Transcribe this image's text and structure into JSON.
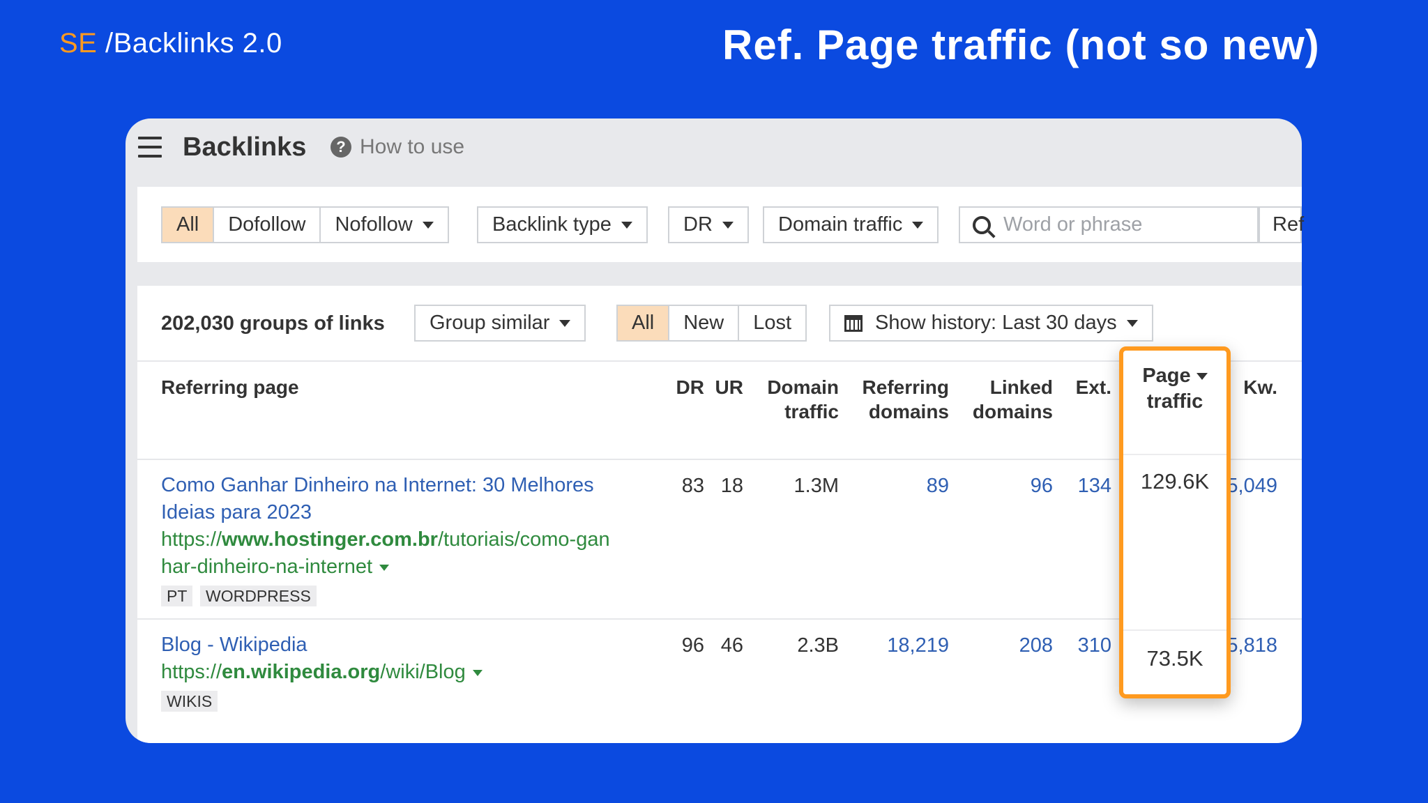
{
  "slide": {
    "brand_prefix": "SE",
    "brand_suffix": "/Backlinks 2.0",
    "headline": "Ref. Page traffic (not so new)",
    "accent_color": "#ff9a1f",
    "background_color": "#0b4ae0"
  },
  "app": {
    "title": "Backlinks",
    "help_label": "How to use",
    "help_icon": "question-circle-icon",
    "menu_icon": "hamburger-icon"
  },
  "filters": {
    "link_type_all": "All",
    "link_type_dofollow": "Dofollow",
    "link_type_nofollow": "Nofollow",
    "backlink_type": "Backlink type",
    "dr": "DR",
    "domain_traffic": "Domain traffic",
    "search_placeholder": "Word or phrase",
    "ref_button": "Ref"
  },
  "toolbar": {
    "groups_count": "202,030 groups of links",
    "group_similar": "Group similar",
    "status_all": "All",
    "status_new": "New",
    "status_lost": "Lost",
    "history": "Show history: Last 30 days"
  },
  "columns": {
    "referring_page": "Referring page",
    "dr": "DR",
    "ur": "UR",
    "domain_traffic_1": "Domain",
    "domain_traffic_2": "traffic",
    "referring_domains_1": "Referring",
    "referring_domains_2": "domains",
    "linked_domains_1": "Linked",
    "linked_domains_2": "domains",
    "ext": "Ext.",
    "page_traffic_1": "Page",
    "page_traffic_2": "traffic",
    "kw": "Kw."
  },
  "rows": [
    {
      "title_line1": "Como Ganhar Dinheiro na Internet: 30 Melhores",
      "title_line2": "Ideias para 2023",
      "url_prefix": "https://",
      "url_domain": "www.hostinger.com.br",
      "url_path_line1": "/tutoriais/como-gan",
      "url_line2": "har-dinheiro-na-internet",
      "tags": [
        "PT",
        "WORDPRESS"
      ],
      "dr": "83",
      "ur": "18",
      "domain_traffic": "1.3M",
      "referring_domains": "89",
      "linked_domains": "96",
      "ext": "134",
      "page_traffic": "129.6K",
      "kw": "5,049"
    },
    {
      "title_line1": "Blog - Wikipedia",
      "url_prefix": "https://",
      "url_domain": "en.wikipedia.org",
      "url_path_line1": "/wiki/Blog",
      "tags": [
        "WIKIS"
      ],
      "dr": "96",
      "ur": "46",
      "domain_traffic": "2.3B",
      "referring_domains": "18,219",
      "linked_domains": "208",
      "ext": "310",
      "page_traffic": "73.5K",
      "kw": "5,818"
    }
  ]
}
